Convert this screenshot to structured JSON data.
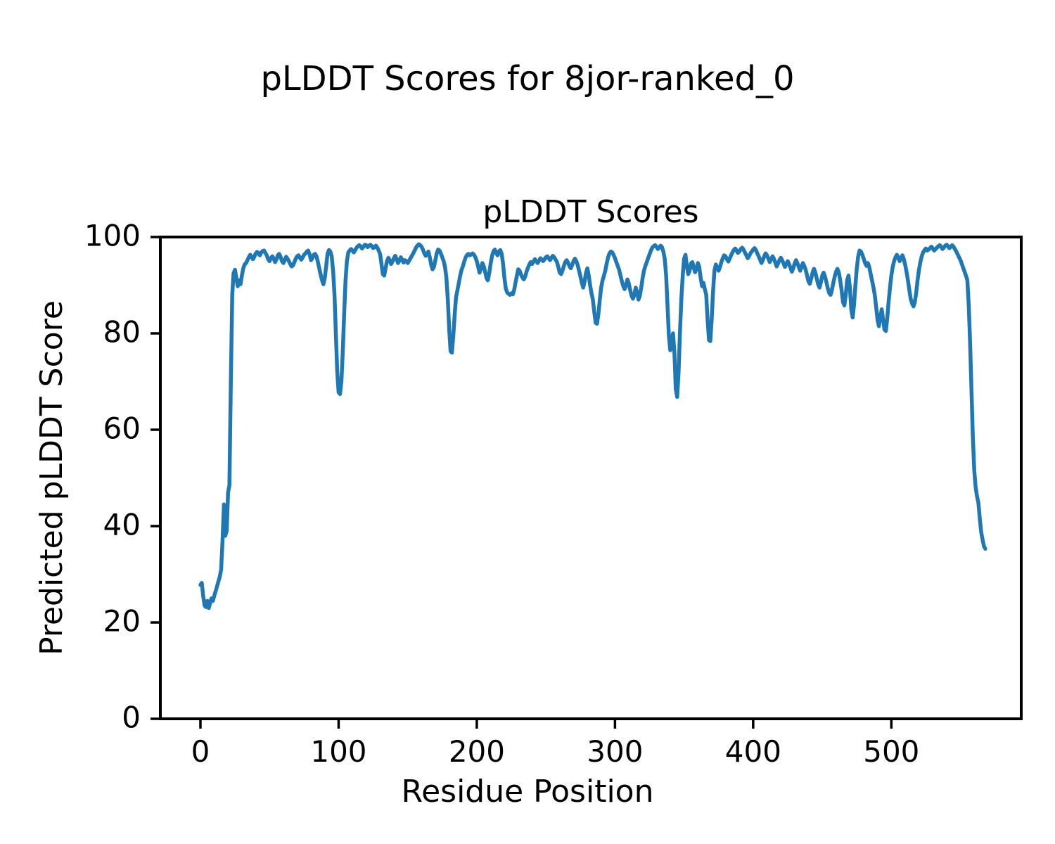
{
  "chart_data": {
    "type": "line",
    "suptitle": "pLDDT Scores for 8jor-ranked_0",
    "title": "pLDDT Scores",
    "xlabel": "Residue Position",
    "ylabel": "Predicted pLDDT Score",
    "xlim": [
      -29,
      594
    ],
    "ylim": [
      0,
      100
    ],
    "xticks": [
      0,
      100,
      200,
      300,
      400,
      500
    ],
    "yticks": [
      0,
      20,
      40,
      60,
      80,
      100
    ],
    "grid": false,
    "legend": null,
    "line_color": "#1f77b4",
    "line_width": 5.5,
    "axis_color": "#000000",
    "series": [
      {
        "name": "pLDDT",
        "x_start": 0,
        "x_step": 1,
        "values": [
          27.8,
          28.2,
          25.5,
          23.5,
          23.2,
          24.5,
          23.0,
          24.0,
          25.0,
          24.5,
          25.5,
          26.5,
          27.5,
          28.5,
          29.5,
          31.0,
          37.0,
          44.5,
          38.0,
          39.0,
          47.0,
          48.5,
          70.0,
          88.0,
          92.5,
          93.2,
          91.5,
          89.8,
          91.0,
          90.2,
          92.0,
          93.5,
          94.3,
          94.6,
          95.2,
          95.8,
          96.3,
          95.9,
          95.4,
          95.9,
          96.6,
          96.9,
          96.6,
          96.2,
          96.8,
          97.1,
          97.2,
          96.7,
          96.2,
          95.4,
          95.0,
          95.6,
          96.0,
          95.5,
          94.8,
          95.3,
          96.2,
          96.5,
          95.9,
          95.0,
          94.6,
          95.2,
          95.9,
          95.5,
          95.0,
          94.4,
          93.9,
          94.1,
          94.8,
          95.5,
          96.0,
          96.2,
          95.7,
          95.3,
          95.8,
          96.3,
          96.6,
          97.0,
          97.2,
          96.4,
          95.2,
          95.6,
          96.3,
          96.5,
          96.0,
          94.8,
          93.5,
          92.2,
          91.0,
          90.2,
          91.5,
          94.0,
          96.5,
          97.3,
          97.0,
          96.0,
          93.0,
          88.0,
          80.0,
          72.0,
          67.8,
          67.4,
          70.0,
          76.0,
          84.0,
          91.0,
          95.0,
          96.8,
          97.2,
          97.5,
          97.2,
          96.8,
          97.3,
          97.8,
          98.1,
          98.3,
          98.0,
          97.6,
          98.0,
          98.4,
          98.3,
          97.9,
          98.2,
          98.4,
          98.1,
          97.7,
          97.9,
          98.2,
          97.8,
          97.2,
          96.5,
          94.5,
          92.3,
          92.0,
          93.5,
          95.0,
          95.7,
          95.2,
          94.4,
          94.9,
          95.6,
          96.1,
          95.4,
          94.6,
          95.1,
          95.8,
          95.3,
          94.7,
          95.2,
          95.0,
          94.6,
          95.1,
          95.6,
          96.1,
          96.6,
          97.2,
          97.8,
          98.2,
          98.5,
          98.3,
          98.0,
          97.4,
          96.6,
          96.1,
          96.4,
          97.0,
          95.8,
          94.2,
          93.3,
          93.8,
          95.2,
          96.6,
          97.4,
          97.2,
          96.6,
          95.8,
          95.0,
          93.8,
          91.5,
          87.0,
          81.0,
          76.3,
          76.0,
          79.5,
          84.0,
          87.5,
          89.0,
          90.5,
          92.0,
          93.2,
          94.0,
          95.0,
          95.8,
          96.3,
          96.5,
          96.2,
          96.4,
          96.6,
          96.3,
          95.8,
          95.0,
          93.8,
          92.6,
          93.4,
          94.6,
          94.0,
          92.8,
          91.5,
          91.0,
          92.5,
          94.5,
          96.0,
          97.0,
          97.4,
          96.8,
          96.2,
          97.0,
          97.3,
          96.5,
          94.5,
          91.5,
          89.3,
          88.5,
          88.2,
          88.0,
          88.3,
          88.1,
          89.0,
          90.5,
          92.0,
          93.3,
          93.0,
          92.2,
          91.6,
          91.2,
          91.8,
          92.8,
          93.6,
          94.3,
          94.8,
          94.4,
          94.9,
          95.4,
          95.0,
          94.6,
          95.1,
          95.6,
          95.3,
          95.0,
          95.4,
          95.8,
          96.0,
          95.6,
          95.2,
          95.7,
          96.1,
          95.8,
          95.3,
          94.8,
          93.8,
          92.6,
          92.3,
          93.0,
          94.0,
          94.8,
          95.2,
          94.7,
          94.0,
          93.5,
          94.2,
          95.0,
          95.5,
          95.0,
          94.2,
          93.0,
          91.8,
          90.5,
          89.5,
          90.8,
          92.5,
          93.5,
          92.0,
          90.0,
          88.3,
          87.0,
          84.5,
          82.2,
          82.0,
          84.0,
          87.0,
          89.5,
          91.0,
          92.0,
          93.0,
          94.5,
          95.8,
          96.6,
          97.0,
          96.8,
          96.3,
          95.6,
          94.8,
          94.0,
          93.2,
          92.0,
          90.8,
          89.8,
          89.2,
          90.0,
          91.2,
          90.4,
          89.0,
          87.8,
          87.2,
          88.0,
          89.5,
          88.5,
          87.0,
          87.8,
          89.5,
          91.5,
          93.0,
          94.0,
          94.8,
          95.6,
          96.4,
          97.2,
          97.8,
          98.1,
          98.3,
          98.0,
          97.5,
          97.8,
          98.2,
          97.9,
          97.0,
          95.5,
          92.0,
          86.0,
          79.5,
          76.5,
          78.5,
          80.0,
          76.0,
          68.5,
          66.8,
          72.0,
          80.0,
          87.0,
          92.0,
          95.5,
          96.3,
          94.0,
          92.3,
          93.0,
          94.5,
          94.8,
          93.6,
          92.7,
          93.5,
          94.6,
          93.8,
          91.5,
          89.8,
          90.5,
          89.2,
          88.0,
          83.0,
          78.6,
          78.4,
          83.0,
          89.0,
          93.0,
          94.3,
          93.6,
          93.0,
          93.8,
          94.8,
          95.6,
          96.2,
          96.0,
          95.4,
          94.9,
          95.5,
          96.2,
          96.8,
          97.3,
          97.6,
          97.2,
          96.7,
          97.0,
          97.5,
          97.8,
          97.4,
          96.8,
          96.2,
          95.6,
          96.0,
          96.6,
          97.0,
          97.4,
          97.7,
          97.3,
          96.6,
          96.0,
          95.3,
          94.6,
          95.2,
          96.0,
          96.6,
          96.2,
          95.5,
          94.8,
          95.4,
          96.0,
          95.5,
          94.7,
          93.9,
          94.5,
          95.2,
          95.7,
          95.2,
          94.5,
          93.8,
          94.4,
          95.0,
          94.4,
          93.6,
          92.8,
          93.5,
          94.5,
          95.2,
          94.6,
          93.8,
          93.0,
          93.8,
          94.6,
          94.0,
          93.2,
          92.0,
          90.8,
          90.3,
          91.4,
          92.6,
          93.4,
          92.6,
          91.4,
          90.2,
          89.5,
          90.6,
          92.0,
          92.6,
          91.8,
          90.6,
          89.4,
          88.4,
          88.0,
          89.0,
          90.5,
          91.8,
          92.8,
          93.4,
          92.6,
          91.0,
          89.0,
          86.5,
          85.8,
          88.0,
          91.0,
          92.0,
          89.5,
          85.0,
          83.3,
          86.0,
          90.0,
          93.5,
          96.0,
          97.2,
          97.0,
          96.3,
          95.5,
          94.6,
          94.0,
          94.6,
          93.8,
          92.4,
          91.0,
          89.6,
          88.0,
          85.5,
          82.8,
          81.5,
          83.5,
          85.0,
          83.0,
          80.8,
          80.5,
          83.0,
          86.5,
          89.5,
          92.0,
          93.8,
          95.0,
          95.8,
          96.3,
          95.8,
          95.0,
          95.6,
          96.2,
          95.4,
          94.2,
          92.8,
          91.0,
          89.0,
          87.2,
          86.2,
          85.6,
          86.5,
          88.5,
          91.0,
          93.2,
          94.8,
          96.0,
          96.8,
          97.3,
          97.6,
          97.2,
          97.4,
          97.7,
          98.0,
          97.6,
          97.2,
          97.5,
          97.8,
          98.1,
          98.3,
          98.0,
          97.5,
          97.8,
          98.2,
          98.4,
          98.1,
          97.7,
          98.0,
          98.3,
          98.0,
          97.5,
          97.0,
          96.4,
          95.8,
          95.2,
          94.4,
          93.6,
          92.8,
          92.0,
          91.0,
          86.0,
          78.0,
          68.0,
          58.5,
          51.5,
          48.0,
          46.2,
          44.8,
          41.5,
          38.8,
          37.2,
          35.8,
          35.3
        ]
      }
    ]
  }
}
